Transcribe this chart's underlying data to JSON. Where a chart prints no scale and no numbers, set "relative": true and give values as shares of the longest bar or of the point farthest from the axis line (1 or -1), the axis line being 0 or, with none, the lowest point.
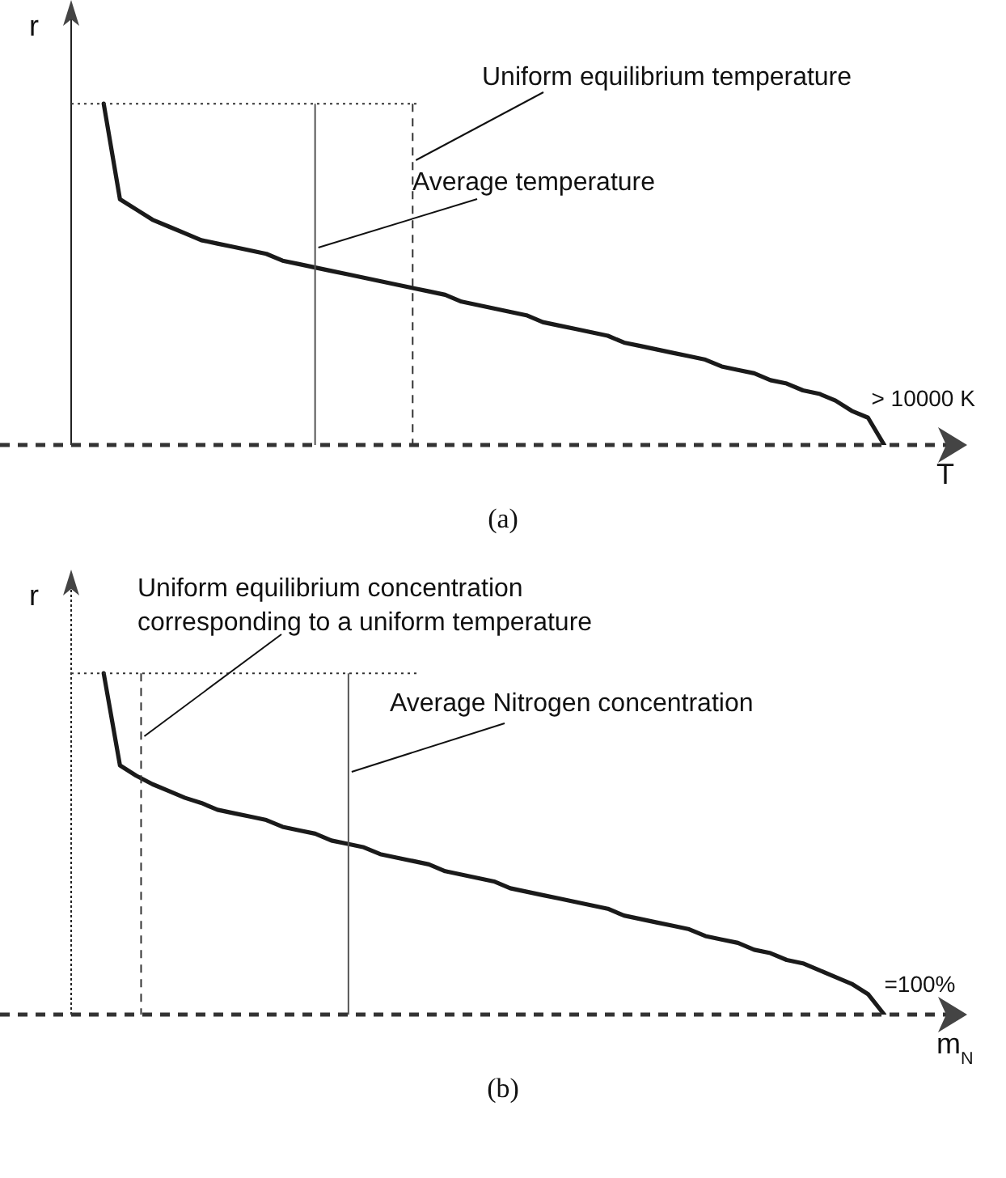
{
  "chart_data": [
    {
      "type": "line",
      "relative": true,
      "xlabel": "T",
      "ylabel": "r",
      "marker": "none",
      "categories": [
        null,
        null,
        null,
        null,
        null,
        null,
        null,
        null,
        null,
        null,
        null,
        null,
        null,
        null,
        null,
        null,
        null,
        null,
        null,
        null,
        null,
        null,
        null,
        null,
        null,
        null,
        null,
        null,
        null,
        null,
        null,
        null,
        null,
        null,
        null,
        null,
        null,
        null,
        null,
        null,
        null,
        null,
        null,
        null,
        null,
        null,
        null,
        null,
        null,
        null,
        null
      ],
      "series": [
        {
          "color": "#1a1a1a",
          "values": [
            null,
            null,
            1,
            0.72,
            0.69,
            0.66,
            0.64,
            0.62,
            0.6,
            0.59,
            0.58,
            0.57,
            0.56,
            0.54,
            0.53,
            0.52,
            0.51,
            0.5,
            0.49,
            0.48,
            0.47,
            0.46,
            0.45,
            0.44,
            0.42,
            0.41,
            0.4,
            0.39,
            0.38,
            0.36,
            0.35,
            0.34,
            0.33,
            0.32,
            0.3,
            0.29,
            0.28,
            0.27,
            0.26,
            0.25,
            0.23,
            0.22,
            0.21,
            0.19,
            0.18,
            0.16,
            0.15,
            0.13,
            0.1,
            0.08,
            0
          ]
        }
      ],
      "ref_lines": [
        {
          "axis": "y",
          "value": 1,
          "line_style": "dotted",
          "color": "#333333"
        }
      ],
      "annotations": [
        "Average temperature",
        "Uniform equilibrium temperature",
        "> 10000 K",
        "(a)"
      ]
    },
    {
      "type": "line",
      "relative": true,
      "xlabel": "m$_{N}$",
      "ylabel": "r",
      "marker": "none",
      "categories": [
        null,
        null,
        null,
        null,
        null,
        null,
        null,
        null,
        null,
        null,
        null,
        null,
        null,
        null,
        null,
        null,
        null,
        null,
        null,
        null,
        null,
        null,
        null,
        null,
        null,
        null,
        null,
        null,
        null,
        null,
        null,
        null,
        null,
        null,
        null,
        null,
        null,
        null,
        null,
        null,
        null,
        null,
        null,
        null,
        null,
        null,
        null,
        null,
        null,
        null,
        null
      ],
      "series": [
        {
          "color": "#1a1a1a",
          "values": [
            null,
            null,
            1,
            0.73,
            0.7,
            0.675,
            0.655,
            0.635,
            0.62,
            0.6,
            0.59,
            0.58,
            0.57,
            0.55,
            0.54,
            0.53,
            0.51,
            0.5,
            0.49,
            0.47,
            0.46,
            0.45,
            0.44,
            0.42,
            0.41,
            0.4,
            0.39,
            0.37,
            0.36,
            0.35,
            0.34,
            0.33,
            0.32,
            0.31,
            0.29,
            0.28,
            0.27,
            0.26,
            0.25,
            0.23,
            0.22,
            0.21,
            0.19,
            0.18,
            0.16,
            0.15,
            0.13,
            0.11,
            0.09,
            0.06,
            0
          ]
        }
      ],
      "ref_lines": [
        {
          "axis": "y",
          "value": 1,
          "line_style": "dotted",
          "color": "#333333"
        }
      ],
      "annotations": [
        "Uniform equilibrium concentration\ncorresponding to a uniform temperature",
        "Average Nitrogen concentration",
        "=100%",
        "(b)"
      ]
    }
  ]
}
